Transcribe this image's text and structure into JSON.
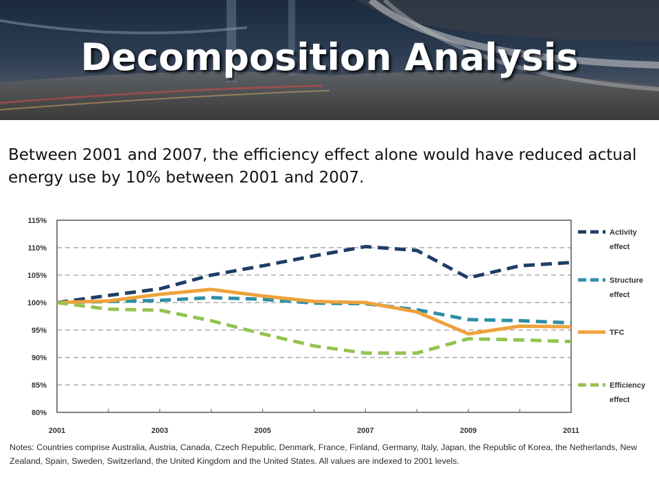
{
  "slide": {
    "title": "Decomposition Analysis",
    "body": "Between 2001 and 2007, the efficiency effect alone would have reduced actual energy use by 10% between 2001 and 2007.",
    "notes": "Notes: Countries comprise Australia, Austria, Canada, Czech Republic, Denmark, France, Finland, Germany, Italy, Japan, the Republic of Korea, the Netherlands, New Zealand, Spain, Sweden, Switzerland, the United Kingdom and the United States. All values are indexed to 2001 levels."
  },
  "chart_data": {
    "type": "line",
    "x": [
      2001,
      2002,
      2003,
      2004,
      2005,
      2006,
      2007,
      2008,
      2009,
      2010,
      2011
    ],
    "x_tick_labels": [
      "2001",
      "2003",
      "2005",
      "2007",
      "2009",
      "2011"
    ],
    "y_tick_labels": [
      "115%",
      "110%",
      "105%",
      "100%",
      "95%",
      "90%",
      "85%",
      "80%"
    ],
    "ylim": [
      80,
      115
    ],
    "grid": "horizontal dashed",
    "legend_position": "right",
    "series": [
      {
        "name": "Activity effect",
        "legend_lines": [
          "Activity",
          "effect"
        ],
        "color": "#1f3d66",
        "style": "dashed",
        "values": [
          100,
          101.3,
          102.5,
          105,
          106.7,
          108.5,
          110.2,
          109.5,
          104.5,
          106.7,
          107.3
        ]
      },
      {
        "name": "Structure effect",
        "legend_lines": [
          "Structure",
          "effect"
        ],
        "color": "#2e8ea8",
        "style": "dashed",
        "values": [
          100,
          100.2,
          100.4,
          100.9,
          100.6,
          99.9,
          99.8,
          98.7,
          96.9,
          96.7,
          96.3
        ]
      },
      {
        "name": "TFC",
        "legend_lines": [
          "TFC"
        ],
        "color": "#eea23c",
        "style": "solid",
        "values": [
          100,
          100.3,
          101.5,
          102.4,
          101.2,
          100.2,
          100,
          98.3,
          94.3,
          95.7,
          95.6
        ]
      },
      {
        "name": "Efficiency effect",
        "legend_lines": [
          "Efficiency",
          "effect"
        ],
        "color": "#94c352",
        "style": "dashed",
        "values": [
          100,
          98.8,
          98.6,
          96.7,
          94.3,
          92.1,
          90.8,
          90.8,
          93.4,
          93.2,
          92.9
        ]
      }
    ]
  }
}
